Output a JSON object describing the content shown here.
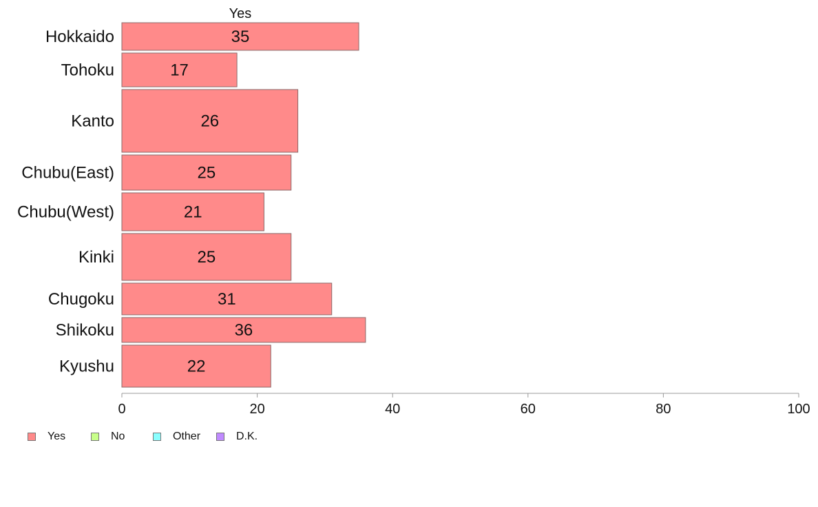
{
  "chart_data": {
    "type": "bar",
    "orientation": "horizontal",
    "stacked": true,
    "variable_width": true,
    "top_label": "Yes",
    "categories": [
      "Hokkaido",
      "Tohoku",
      "Kanto",
      "Chubu(East)",
      "Chubu(West)",
      "Kinki",
      "Chugoku",
      "Shikoku",
      "Kyushu"
    ],
    "series": [
      {
        "name": "Yes",
        "color": "#ff8a8a",
        "values": [
          35,
          17,
          26,
          25,
          21,
          25,
          31,
          36,
          22
        ]
      }
    ],
    "category_weights": [
      40,
      49,
      91,
      51,
      55,
      68,
      46,
      36,
      61
    ],
    "xlim": [
      0,
      100
    ],
    "xticks": [
      0,
      20,
      40,
      60,
      80,
      100
    ],
    "grid": false,
    "legend": {
      "position": "bottom-left",
      "items": [
        {
          "label": "Yes",
          "color": "#ff8a8a"
        },
        {
          "label": "No",
          "color": "#c8ff8a"
        },
        {
          "label": "Other",
          "color": "#8affff"
        },
        {
          "label": "D.K.",
          "color": "#c08aff"
        }
      ]
    }
  }
}
